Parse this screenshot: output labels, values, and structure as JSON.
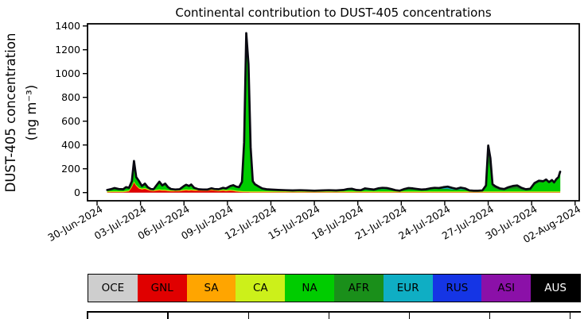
{
  "chart_data": {
    "type": "area",
    "stacked": true,
    "title": "Continental contribution to DUST-405 concentrations",
    "ylabel_line1": "DUST-405 concentration",
    "ylabel_line2": "(ng m⁻³)",
    "unit": "ng m⁻³",
    "ylim": [
      0,
      1400
    ],
    "yticks": [
      0,
      200,
      400,
      600,
      800,
      1000,
      1200,
      1400
    ],
    "xticks": [
      "30-Jun-2024",
      "03-Jul-2024",
      "06-Jul-2024",
      "09-Jul-2024",
      "12-Jul-2024",
      "15-Jul-2024",
      "18-Jul-2024",
      "21-Jul-2024",
      "24-Jul-2024",
      "27-Jul-2024",
      "30-Jul-2024",
      "02-Aug-2024"
    ],
    "xtick_days": [
      0,
      3,
      6,
      9,
      12,
      15,
      18,
      21,
      24,
      27,
      30,
      33
    ],
    "legend_position": "bottom",
    "grid": false,
    "series_meta": [
      {
        "name": "OCE",
        "label": "OCE",
        "color": "#CECECE",
        "label_color": "#000000"
      },
      {
        "name": "GNL",
        "label": "GNL",
        "color": "#E00000",
        "label_color": "#000000"
      },
      {
        "name": "SA",
        "label": "SA",
        "color": "#FFA500",
        "label_color": "#000000"
      },
      {
        "name": "CA",
        "label": "CA",
        "color": "#CCF01A",
        "label_color": "#000000"
      },
      {
        "name": "NA",
        "label": "NA",
        "color": "#00CC00",
        "label_color": "#000000"
      },
      {
        "name": "AFR",
        "label": "AFR",
        "color": "#1A8F1A",
        "label_color": "#000000"
      },
      {
        "name": "EUR",
        "label": "EUR",
        "color": "#0FAEC4",
        "label_color": "#000000"
      },
      {
        "name": "RUS",
        "label": "RUS",
        "color": "#1535E5",
        "label_color": "#000000"
      },
      {
        "name": "ASI",
        "label": "ASI",
        "color": "#8B10A8",
        "label_color": "#000000"
      },
      {
        "name": "AUS",
        "label": "AUS",
        "color": "#000000",
        "label_color": "#FFFFFF"
      }
    ],
    "baseline_constants": {
      "OCE": 1.5,
      "SA": 2.5,
      "CA": 6,
      "AUS": 0
    },
    "na_is_residual_of_total": true,
    "x_days": [
      0.7,
      1.0,
      1.2,
      1.5,
      1.8,
      2.0,
      2.2,
      2.4,
      2.55,
      2.7,
      2.9,
      3.1,
      3.3,
      3.5,
      3.7,
      3.9,
      4.1,
      4.3,
      4.5,
      4.7,
      4.9,
      5.1,
      5.4,
      5.7,
      6.0,
      6.15,
      6.35,
      6.5,
      6.7,
      7.0,
      7.3,
      7.6,
      7.9,
      8.1,
      8.4,
      8.7,
      8.9,
      9.2,
      9.4,
      9.6,
      9.8,
      10.0,
      10.15,
      10.3,
      10.45,
      10.6,
      10.75,
      10.9,
      11.1,
      11.4,
      11.7,
      12.0,
      12.5,
      13.0,
      13.5,
      14.0,
      14.5,
      15.0,
      15.5,
      16.0,
      16.5,
      17.0,
      17.3,
      17.6,
      17.9,
      18.2,
      18.5,
      18.8,
      19.1,
      19.4,
      19.7,
      20.0,
      20.3,
      20.6,
      20.9,
      21.2,
      21.5,
      21.8,
      22.1,
      22.4,
      22.7,
      23.0,
      23.3,
      23.6,
      23.9,
      24.2,
      24.5,
      24.8,
      25.1,
      25.4,
      25.7,
      26.0,
      26.3,
      26.6,
      26.85,
      27.0,
      27.15,
      27.3,
      27.5,
      27.8,
      28.1,
      28.4,
      28.7,
      29.0,
      29.3,
      29.6,
      29.9,
      30.2,
      30.5,
      30.8,
      31.0,
      31.2,
      31.4,
      31.55,
      31.7,
      31.85,
      31.97
    ],
    "total": [
      22,
      30,
      38,
      30,
      28,
      46,
      40,
      95,
      265,
      130,
      95,
      55,
      75,
      45,
      30,
      28,
      60,
      92,
      60,
      75,
      45,
      30,
      25,
      28,
      55,
      66,
      55,
      68,
      40,
      28,
      26,
      25,
      36,
      30,
      28,
      40,
      35,
      55,
      62,
      50,
      45,
      90,
      420,
      1340,
      1080,
      380,
      95,
      70,
      55,
      35,
      28,
      25,
      22,
      20,
      18,
      20,
      18,
      16,
      18,
      20,
      18,
      22,
      30,
      32,
      22,
      20,
      35,
      30,
      25,
      35,
      40,
      38,
      30,
      20,
      16,
      30,
      38,
      35,
      30,
      25,
      28,
      35,
      40,
      38,
      45,
      50,
      40,
      32,
      42,
      35,
      18,
      15,
      15,
      18,
      60,
      395,
      290,
      70,
      52,
      35,
      30,
      45,
      55,
      60,
      40,
      28,
      32,
      80,
      100,
      95,
      110,
      88,
      105,
      85,
      112,
      130,
      175
    ],
    "components": {
      "GNL": [
        2,
        3,
        3,
        3,
        3,
        6,
        10,
        45,
        85,
        55,
        32,
        25,
        30,
        22,
        14,
        12,
        15,
        18,
        15,
        15,
        12,
        10,
        10,
        11,
        16,
        18,
        15,
        18,
        15,
        15,
        14,
        13,
        20,
        15,
        12,
        15,
        12,
        15,
        13,
        8,
        6,
        4,
        3,
        3,
        3,
        2,
        2,
        2,
        2,
        2,
        2,
        2,
        2,
        2,
        1,
        1,
        1,
        1,
        1,
        1,
        1,
        1,
        1,
        1,
        1,
        1,
        1,
        1,
        1,
        1,
        1,
        1,
        1,
        1,
        1,
        1,
        1,
        1,
        1,
        1,
        1,
        1,
        1,
        1,
        1,
        1,
        1,
        1,
        1,
        1,
        1,
        1,
        1,
        1,
        1,
        1,
        1,
        1,
        1,
        1,
        1,
        1,
        1,
        1,
        1,
        1,
        1,
        1,
        1,
        1,
        1,
        1,
        1,
        1,
        1,
        1,
        1
      ],
      "ASI": [
        0.3,
        0.3,
        0.3,
        0.3,
        0.3,
        0.3,
        0.3,
        0.5,
        0.5,
        0.5,
        0.5,
        0.5,
        1,
        6,
        8,
        6,
        2,
        1,
        1,
        1,
        1,
        1,
        1,
        1,
        1,
        1,
        1,
        1,
        1,
        1,
        1,
        1,
        1,
        1,
        1,
        1,
        1,
        1,
        1,
        1,
        1,
        1,
        1,
        1,
        1,
        1,
        1,
        1,
        1,
        1,
        1,
        1,
        1,
        1,
        1,
        2,
        2,
        2,
        3,
        3,
        3,
        3,
        4,
        4,
        3,
        3,
        5,
        4,
        4,
        5,
        6,
        6,
        4,
        3,
        2,
        3,
        4,
        3,
        2,
        1,
        1,
        1,
        1,
        1,
        1,
        1,
        1,
        1,
        1,
        1,
        1,
        1,
        1,
        1,
        1,
        1,
        1,
        1,
        1,
        1,
        1,
        1,
        1,
        1,
        1,
        1,
        1,
        1,
        1,
        1,
        1,
        1,
        1,
        1,
        1,
        1,
        1
      ],
      "RUS": [
        0.5,
        0.5,
        0.5,
        0.5,
        0.5,
        0.5,
        0.5,
        0.5,
        0.5,
        0.5,
        0.5,
        0.5,
        0.5,
        0.5,
        0.5,
        0.5,
        0.5,
        0.5,
        0.5,
        0.5,
        0.5,
        0.5,
        0.5,
        0.5,
        0.5,
        0.5,
        0.5,
        0.5,
        0.5,
        0.5,
        0.5,
        0.5,
        0.5,
        0.5,
        0.5,
        0.5,
        0.5,
        0.5,
        0.5,
        0.5,
        0.5,
        0.5,
        0.5,
        0.5,
        0.5,
        0.5,
        0.5,
        0.5,
        0.5,
        0.5,
        0.5,
        1,
        1,
        1.5,
        1.5,
        1.5,
        1.5,
        1.5,
        1.5,
        1.5,
        1.5,
        1.5,
        1.5,
        1.5,
        1.5,
        1.5,
        1.5,
        1.5,
        1.5,
        1.5,
        1.5,
        1.5,
        1.5,
        1,
        1,
        1,
        1,
        1,
        0.5,
        0.5,
        0.5,
        0.5,
        0.5,
        0.5,
        0.5,
        0.5,
        0.5,
        0.5,
        0.5,
        0.5,
        0.5,
        0.5,
        0.5,
        0.5,
        0.5,
        0.5,
        0.5,
        0.5,
        0.5,
        0.5,
        0.5,
        0.5,
        0.5,
        0.5,
        0.5,
        0.5,
        0.5,
        0.5,
        0.5,
        0.5,
        0.5,
        0.5,
        0.5,
        0.5,
        0.5,
        0.5,
        0.5
      ],
      "EUR": [
        0.3,
        0.3,
        0.3,
        0.3,
        0.3,
        0.3,
        0.3,
        0.3,
        0.3,
        0.3,
        0.3,
        0.3,
        0.3,
        0.3,
        0.3,
        0.3,
        0.3,
        0.3,
        0.3,
        0.3,
        0.3,
        0.3,
        0.3,
        0.3,
        0.3,
        0.3,
        0.3,
        0.3,
        0.3,
        0.3,
        0.3,
        0.3,
        0.3,
        0.3,
        0.3,
        0.3,
        0.3,
        0.3,
        0.3,
        0.3,
        0.3,
        0.3,
        0.3,
        0.3,
        0.3,
        0.3,
        0.3,
        0.3,
        0.3,
        0.3,
        0.3,
        0.3,
        0.3,
        0.3,
        0.3,
        0.3,
        0.3,
        0.3,
        0.3,
        0.3,
        0.3,
        0.3,
        0.3,
        0.3,
        0.3,
        0.3,
        2.5,
        1.5,
        0.3,
        0.3,
        0.3,
        0.3,
        0.3,
        0.3,
        0.3,
        0.3,
        0.3,
        0.3,
        0.3,
        0.3,
        0.3,
        0.3,
        0.3,
        0.3,
        10,
        16,
        11,
        5,
        12,
        7,
        1.5,
        0.3,
        0.3,
        0.3,
        0.3,
        0.3,
        0.3,
        0.3,
        0.3,
        0.3,
        0.3,
        0.3,
        0.3,
        0.3,
        0.3,
        0.3,
        0.3,
        0.3,
        0.3,
        0.3,
        0.3,
        0.3,
        0.3,
        0.3,
        0.3,
        0.3,
        0.3
      ],
      "AFR": [
        0,
        0,
        0,
        0,
        0,
        0,
        0,
        0,
        0,
        0,
        0,
        0,
        0,
        0,
        0,
        0,
        0,
        0,
        0,
        0,
        0,
        0,
        0,
        0,
        0,
        0,
        0,
        0,
        0,
        0,
        0,
        0,
        0,
        0,
        0,
        0,
        0,
        0,
        0,
        0,
        0,
        0,
        0,
        0,
        0,
        0,
        0,
        0,
        0,
        0,
        0,
        0,
        0,
        0,
        0,
        0,
        0,
        0,
        0,
        0,
        0,
        0,
        0,
        0,
        0,
        0,
        0,
        0,
        0,
        0,
        0,
        0,
        0,
        0,
        0,
        4,
        7,
        7,
        5,
        3,
        4,
        6,
        8,
        6,
        6,
        6,
        4,
        3,
        4,
        3,
        2,
        1,
        1,
        2,
        18,
        130,
        95,
        22,
        16,
        10,
        8,
        15,
        22,
        26,
        15,
        6,
        6,
        12,
        12,
        8,
        6,
        5,
        5,
        4,
        4,
        4,
        4
      ]
    }
  }
}
